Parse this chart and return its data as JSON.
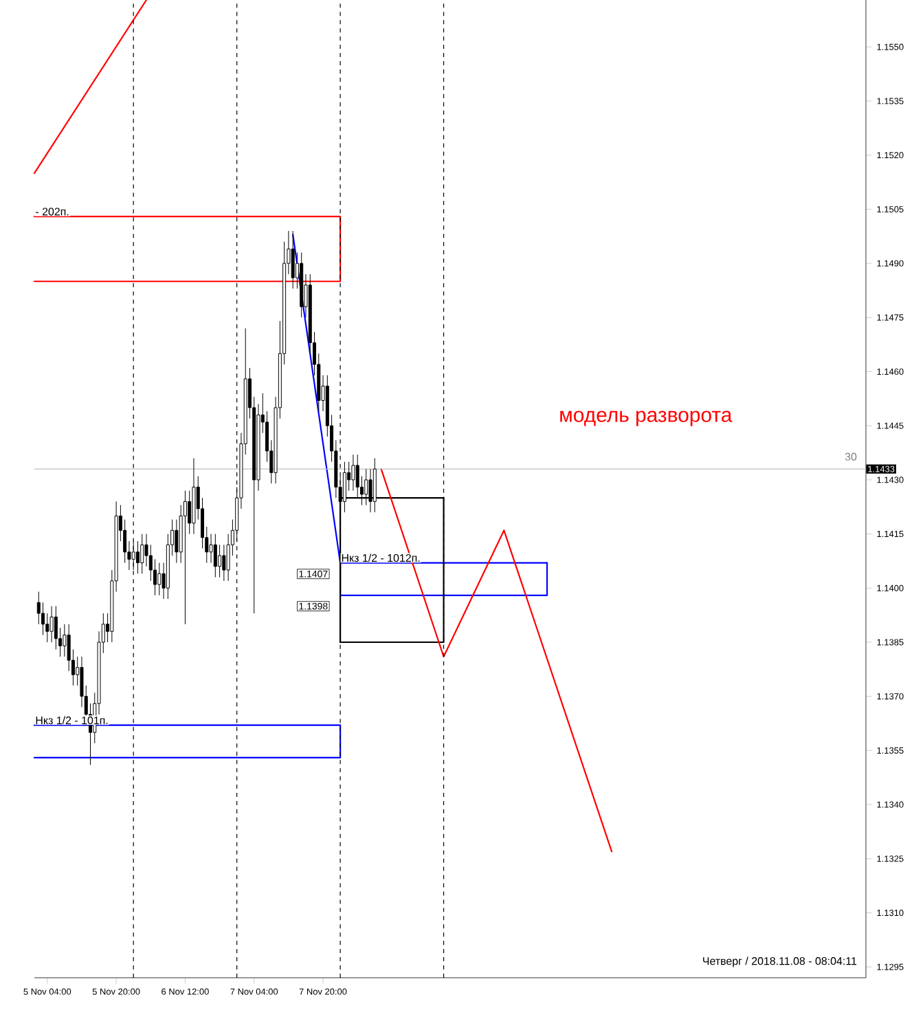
{
  "chart_data": {
    "type": "candlestick",
    "color": "#000000",
    "x": [
      "2018-11-05T02:00",
      "2018-11-05T03:00",
      "2018-11-05T04:00",
      "2018-11-05T05:00",
      "2018-11-05T06:00",
      "2018-11-05T07:00",
      "2018-11-05T08:00",
      "2018-11-05T09:00",
      "2018-11-05T10:00",
      "2018-11-05T11:00",
      "2018-11-05T12:00",
      "2018-11-05T13:00",
      "2018-11-05T14:00",
      "2018-11-05T15:00",
      "2018-11-05T16:00",
      "2018-11-05T17:00",
      "2018-11-05T18:00",
      "2018-11-05T19:00",
      "2018-11-05T20:00",
      "2018-11-05T21:00",
      "2018-11-05T22:00",
      "2018-11-05T23:00",
      "2018-11-06T00:00",
      "2018-11-06T01:00",
      "2018-11-06T02:00",
      "2018-11-06T03:00",
      "2018-11-06T04:00",
      "2018-11-06T05:00",
      "2018-11-06T06:00",
      "2018-11-06T07:00",
      "2018-11-06T08:00",
      "2018-11-06T09:00",
      "2018-11-06T10:00",
      "2018-11-06T11:00",
      "2018-11-06T12:00",
      "2018-11-06T13:00",
      "2018-11-06T14:00",
      "2018-11-06T15:00",
      "2018-11-06T16:00",
      "2018-11-06T17:00",
      "2018-11-06T18:00",
      "2018-11-06T19:00",
      "2018-11-06T20:00",
      "2018-11-06T21:00",
      "2018-11-06T22:00",
      "2018-11-06T23:00",
      "2018-11-07T00:00",
      "2018-11-07T01:00",
      "2018-11-07T02:00",
      "2018-11-07T03:00",
      "2018-11-07T04:00",
      "2018-11-07T05:00",
      "2018-11-07T06:00",
      "2018-11-07T07:00",
      "2018-11-07T08:00",
      "2018-11-07T09:00",
      "2018-11-07T10:00",
      "2018-11-07T11:00",
      "2018-11-07T12:00",
      "2018-11-07T13:00",
      "2018-11-07T14:00",
      "2018-11-07T15:00",
      "2018-11-07T16:00",
      "2018-11-07T17:00",
      "2018-11-07T18:00",
      "2018-11-07T19:00",
      "2018-11-07T20:00",
      "2018-11-07T21:00",
      "2018-11-07T22:00",
      "2018-11-07T23:00",
      "2018-11-08T00:00",
      "2018-11-08T01:00",
      "2018-11-08T02:00",
      "2018-11-08T03:00",
      "2018-11-08T04:00",
      "2018-11-08T05:00",
      "2018-11-08T06:00",
      "2018-11-08T07:00",
      "2018-11-08T08:00"
    ],
    "ohlc": [
      [
        1.1396,
        1.1399,
        1.139,
        1.1393
      ],
      [
        1.1393,
        1.1396,
        1.1387,
        1.139
      ],
      [
        1.139,
        1.1393,
        1.1385,
        1.1388
      ],
      [
        1.1388,
        1.1395,
        1.1385,
        1.1392
      ],
      [
        1.1392,
        1.1395,
        1.1383,
        1.1386
      ],
      [
        1.1386,
        1.1389,
        1.1381,
        1.1384
      ],
      [
        1.1384,
        1.139,
        1.1381,
        1.1387
      ],
      [
        1.1387,
        1.139,
        1.1377,
        1.138
      ],
      [
        1.138,
        1.1383,
        1.1373,
        1.1376
      ],
      [
        1.1376,
        1.1381,
        1.1373,
        1.1378
      ],
      [
        1.1378,
        1.1381,
        1.1367,
        1.137
      ],
      [
        1.137,
        1.1373,
        1.1362,
        1.1365
      ],
      [
        1.1365,
        1.1368,
        1.1351,
        1.136
      ],
      [
        1.136,
        1.1371,
        1.1357,
        1.1368
      ],
      [
        1.1368,
        1.1388,
        1.1365,
        1.1385
      ],
      [
        1.1385,
        1.1393,
        1.1382,
        1.139
      ],
      [
        1.139,
        1.1393,
        1.1385,
        1.1388
      ],
      [
        1.1388,
        1.1405,
        1.1385,
        1.1402
      ],
      [
        1.1402,
        1.1424,
        1.1399,
        1.142
      ],
      [
        1.142,
        1.1423,
        1.1413,
        1.1416
      ],
      [
        1.1416,
        1.1419,
        1.1407,
        1.141
      ],
      [
        1.141,
        1.1413,
        1.1405,
        1.1408
      ],
      [
        1.1408,
        1.1413,
        1.1405,
        1.141
      ],
      [
        1.141,
        1.1413,
        1.1404,
        1.1407
      ],
      [
        1.1407,
        1.1415,
        1.1404,
        1.1412
      ],
      [
        1.1412,
        1.1415,
        1.1406,
        1.1409
      ],
      [
        1.1409,
        1.1412,
        1.1402,
        1.1405
      ],
      [
        1.1405,
        1.1408,
        1.1398,
        1.1401
      ],
      [
        1.1401,
        1.1407,
        1.1398,
        1.1404
      ],
      [
        1.1404,
        1.1407,
        1.1397,
        1.14
      ],
      [
        1.14,
        1.1415,
        1.1397,
        1.1412
      ],
      [
        1.1412,
        1.1419,
        1.1409,
        1.1416
      ],
      [
        1.1416,
        1.1419,
        1.1407,
        1.141
      ],
      [
        1.141,
        1.1423,
        1.1407,
        1.142
      ],
      [
        1.142,
        1.1427,
        1.139,
        1.1424
      ],
      [
        1.1424,
        1.1427,
        1.1415,
        1.1418
      ],
      [
        1.1418,
        1.1436,
        1.1415,
        1.1428
      ],
      [
        1.1428,
        1.1431,
        1.1419,
        1.1422
      ],
      [
        1.1422,
        1.1425,
        1.1411,
        1.1414
      ],
      [
        1.1414,
        1.1417,
        1.1407,
        1.141
      ],
      [
        1.141,
        1.1415,
        1.1407,
        1.1412
      ],
      [
        1.1412,
        1.1415,
        1.1403,
        1.1406
      ],
      [
        1.1406,
        1.1412,
        1.1403,
        1.1409
      ],
      [
        1.1409,
        1.1412,
        1.1402,
        1.1405
      ],
      [
        1.1405,
        1.1415,
        1.1402,
        1.1412
      ],
      [
        1.1412,
        1.1419,
        1.1409,
        1.1416
      ],
      [
        1.1416,
        1.1428,
        1.1413,
        1.1425
      ],
      [
        1.1425,
        1.1443,
        1.1422,
        1.144
      ],
      [
        1.144,
        1.1472,
        1.1437,
        1.1458
      ],
      [
        1.1458,
        1.1461,
        1.1447,
        1.145
      ],
      [
        1.145,
        1.1453,
        1.1393,
        1.143
      ],
      [
        1.143,
        1.1451,
        1.1427,
        1.1448
      ],
      [
        1.1448,
        1.1454,
        1.1443,
        1.1446
      ],
      [
        1.1446,
        1.1449,
        1.1435,
        1.1438
      ],
      [
        1.1438,
        1.1441,
        1.1429,
        1.1432
      ],
      [
        1.1432,
        1.1453,
        1.1429,
        1.145
      ],
      [
        1.145,
        1.1474,
        1.1447,
        1.1465
      ],
      [
        1.1465,
        1.1496,
        1.1462,
        1.149
      ],
      [
        1.149,
        1.1499,
        1.1487,
        1.1494
      ],
      [
        1.1494,
        1.1499,
        1.1483,
        1.1486
      ],
      [
        1.1486,
        1.1493,
        1.1483,
        1.149
      ],
      [
        1.149,
        1.1493,
        1.1475,
        1.1478
      ],
      [
        1.1478,
        1.1487,
        1.1475,
        1.1484
      ],
      [
        1.1484,
        1.1487,
        1.1465,
        1.1468
      ],
      [
        1.1468,
        1.1471,
        1.1459,
        1.1462
      ],
      [
        1.1462,
        1.1465,
        1.1449,
        1.1452
      ],
      [
        1.1452,
        1.1459,
        1.1449,
        1.1456
      ],
      [
        1.1456,
        1.1459,
        1.1442,
        1.1445
      ],
      [
        1.1445,
        1.1448,
        1.1435,
        1.1438
      ],
      [
        1.1438,
        1.1441,
        1.1425,
        1.1428
      ],
      [
        1.1428,
        1.1431,
        1.1421,
        1.1424
      ],
      [
        1.1424,
        1.1435,
        1.1421,
        1.1432
      ],
      [
        1.1432,
        1.1435,
        1.1427,
        1.143
      ],
      [
        1.143,
        1.1437,
        1.1427,
        1.1434
      ],
      [
        1.1434,
        1.1437,
        1.1425,
        1.1428
      ],
      [
        1.1428,
        1.1431,
        1.1423,
        1.1426
      ],
      [
        1.1426,
        1.1433,
        1.1423,
        1.143
      ],
      [
        1.143,
        1.1433,
        1.1421,
        1.1424
      ],
      [
        1.1424,
        1.1436,
        1.1421,
        1.1433
      ]
    ],
    "series": [
      {
        "type": "line",
        "color": "#ff0000",
        "x": [
          "2018-11-05T01:00",
          "2018-11-06T03:00"
        ],
        "values": [
          1.1515,
          1.1563
        ]
      },
      {
        "type": "line",
        "color": "#0000ff",
        "x": [
          "2018-11-07T13:00",
          "2018-11-08T00:00"
        ],
        "values": [
          1.1498,
          1.1407
        ]
      },
      {
        "type": "line",
        "color": "#ff0000",
        "x": [
          "2018-11-05T01:00",
          "2018-11-08T00:00",
          "2018-11-08T00:00",
          "2018-11-05T01:00"
        ],
        "values": [
          1.1503,
          1.1503,
          1.1485,
          1.1485
        ]
      },
      {
        "type": "line",
        "color": "#0000ff",
        "x": [
          "2018-11-05T01:00",
          "2018-11-08T00:00",
          "2018-11-08T00:00",
          "2018-11-05T01:00"
        ],
        "values": [
          1.1362,
          1.1362,
          1.1353,
          1.1353
        ]
      },
      {
        "type": "line",
        "color": "#0000ff",
        "x": [
          "2018-11-08T00:00",
          "2018-11-08T00:00",
          "2018-11-10T00:00"
        ],
        "values": [
          1.1398,
          1.1407,
          1.1407
        ]
      },
      {
        "type": "line",
        "color": "#0000ff",
        "x": [
          "2018-11-08T00:00",
          "2018-11-10T00:00",
          "2018-11-10T00:00"
        ],
        "values": [
          1.1398,
          1.1398,
          1.1407
        ]
      },
      {
        "type": "line",
        "color": "#000000",
        "x": [
          "2018-11-08T00:00",
          "2018-11-08T00:00",
          "2018-11-09T00:00"
        ],
        "values": [
          1.1385,
          1.1425,
          1.1425
        ]
      },
      {
        "type": "line",
        "color": "#000000",
        "x": [
          "2018-11-08T00:00",
          "2018-11-09T00:00",
          "2018-11-09T00:00"
        ],
        "values": [
          1.1385,
          1.1385,
          1.1425
        ]
      },
      {
        "type": "line",
        "color": "#ff0000",
        "x": [
          "2018-11-08T09:30",
          "2018-11-09T00:00",
          "2018-11-09T14:00",
          "2018-11-10T15:00"
        ],
        "values": [
          1.1433,
          1.1381,
          1.1416,
          1.1327
        ]
      }
    ],
    "xlim": [
      "2018-11-05T01:00",
      "2018-11-13T02:00"
    ],
    "xticks": [
      {
        "value": "2018-11-05T04:00",
        "label": "5 Nov 04:00"
      },
      {
        "value": "2018-11-05T20:00",
        "label": "5 Nov 20:00"
      },
      {
        "value": "2018-11-06T12:00",
        "label": "6 Nov 12:00"
      },
      {
        "value": "2018-11-07T04:00",
        "label": "7 Nov 04:00"
      },
      {
        "value": "2018-11-07T20:00",
        "label": "7 Nov 20:00"
      }
    ],
    "ylim": [
      1.1292,
      1.1563
    ],
    "yticks": [
      {
        "value": 1.1295,
        "label": "1.1295"
      },
      {
        "value": 1.131,
        "label": "1.1310"
      },
      {
        "value": 1.1325,
        "label": "1.1325"
      },
      {
        "value": 1.134,
        "label": "1.1340"
      },
      {
        "value": 1.1355,
        "label": "1.1355"
      },
      {
        "value": 1.137,
        "label": "1.1370"
      },
      {
        "value": 1.1385,
        "label": "1.1385"
      },
      {
        "value": 1.14,
        "label": "1.1400"
      },
      {
        "value": 1.1415,
        "label": "1.1415"
      },
      {
        "value": 1.143,
        "label": "1.1430"
      },
      {
        "value": 1.1445,
        "label": "1.1445"
      },
      {
        "value": 1.146,
        "label": "1.1460"
      },
      {
        "value": 1.1475,
        "label": "1.1475"
      },
      {
        "value": 1.149,
        "label": "1.1490"
      },
      {
        "value": 1.1505,
        "label": "1.1505"
      },
      {
        "value": 1.152,
        "label": "1.1520"
      },
      {
        "value": 1.1535,
        "label": "1.1535"
      },
      {
        "value": 1.155,
        "label": "1.1550"
      }
    ],
    "ref_lines": [
      {
        "axis": "x",
        "value": "2018-11-06T00:00",
        "line_style": "dashed",
        "color": "#000000"
      },
      {
        "axis": "x",
        "value": "2018-11-07T00:00",
        "line_style": "dashed",
        "color": "#000000"
      },
      {
        "axis": "x",
        "value": "2018-11-08T00:00",
        "line_style": "dashed",
        "color": "#000000"
      },
      {
        "axis": "x",
        "value": "2018-11-09T00:00",
        "line_style": "dashed",
        "color": "#000000"
      },
      {
        "axis": "y",
        "value": 1.1433,
        "line_style": "solid",
        "color": "#c0c0c0"
      }
    ],
    "annotations": [
      "модель разворота",
      "Четверг / 2018.11.08 - 08:04:11",
      "30",
      "1.1407",
      "1.1398",
      {
        "text": "- 202п.",
        "x": "2018-11-05T01:00",
        "y": 1.1503
      },
      {
        "text": "Нкз 1/2 - 101п.",
        "x": "2018-11-05T01:00",
        "y": 1.1362
      },
      {
        "text": "Нкз 1/2 - 1012п.",
        "x": "2018-11-08T00:00",
        "y": 1.1407
      },
      {
        "text": "1.1433",
        "y": 1.1433
      }
    ]
  }
}
